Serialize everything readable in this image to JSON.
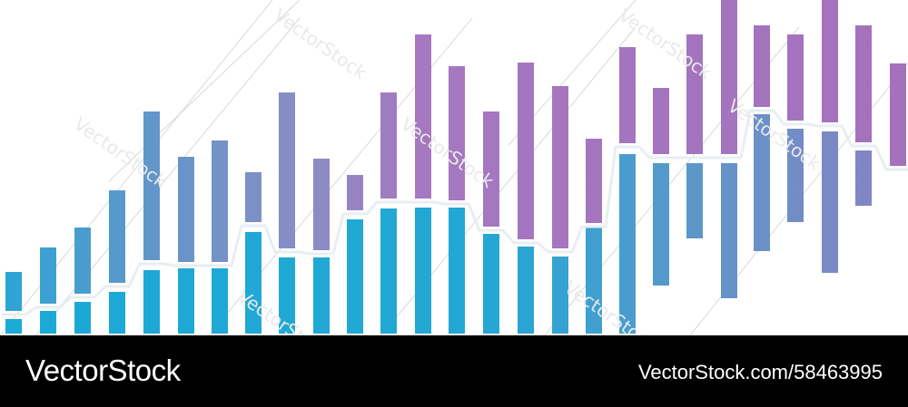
{
  "footer": {
    "brand": "VectorStock",
    "url": "VectorStock.com/58463995"
  },
  "watermark": {
    "text": "VectorStock"
  },
  "colors": {
    "teal": "#1da8d6",
    "purple": "#a571bd",
    "background": "#ffffff",
    "footer_background": "#000000"
  }
}
